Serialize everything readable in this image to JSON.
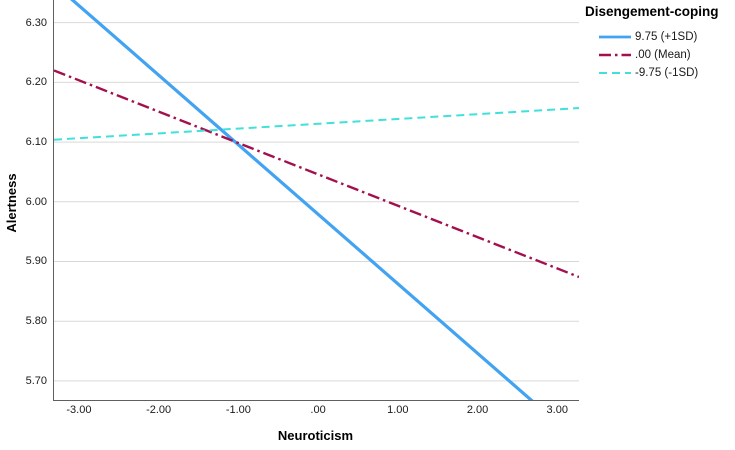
{
  "chart_data": {
    "type": "line",
    "title": "",
    "xlabel": "Neuroticism",
    "ylabel": "Alertness",
    "legend_title": "Disengement-coping",
    "legend_position": "top-right-outside",
    "grid": "horizontal-only",
    "xlim": [
      -3.325,
      3.26
    ],
    "ylim": [
      5.668,
      6.338
    ],
    "x_ticks": [
      {
        "label": "-3.00",
        "value": -3
      },
      {
        "label": "-2.00",
        "value": -2
      },
      {
        "label": "-1.00",
        "value": -1
      },
      {
        "label": ".00",
        "value": 0
      },
      {
        "label": "1.00",
        "value": 1
      },
      {
        "label": "2.00",
        "value": 2
      },
      {
        "label": "3.00",
        "value": 3
      }
    ],
    "y_ticks": [
      {
        "label": "6.30",
        "value": 6.3
      },
      {
        "label": "6.20",
        "value": 6.2
      },
      {
        "label": "6.10",
        "value": 6.1
      },
      {
        "label": "6.00",
        "value": 6.0
      },
      {
        "label": "5.90",
        "value": 5.9
      },
      {
        "label": "5.80",
        "value": 5.8
      },
      {
        "label": "5.70",
        "value": 5.7
      }
    ],
    "series": [
      {
        "name": "9.75 (+1SD)",
        "color": "#42A3F2",
        "style": "solid",
        "stroke_width": 3.2,
        "x": [
          -3.325,
          3.26
        ],
        "y": [
          6.365,
          5.598
        ],
        "note": "clipped by plot area at top-left and at bottom axis near x=2.65"
      },
      {
        "name": ".00 (Mean)",
        "color": "#A3104E",
        "style": "dash-dot",
        "stroke_width": 2.4,
        "x": [
          -3.325,
          3.26
        ],
        "y": [
          6.22,
          5.874
        ]
      },
      {
        "name": "-9.75 (-1SD)",
        "color": "#40E0DB",
        "style": "dash",
        "stroke_width": 2,
        "x": [
          -3.325,
          3.26
        ],
        "y": [
          6.104,
          6.157
        ]
      }
    ],
    "colors": {
      "gridline": "#D9D9D9",
      "axis_line": "#5F5F5F",
      "tick_text": "#1a1a1a",
      "background": "#FFFFFF"
    }
  }
}
